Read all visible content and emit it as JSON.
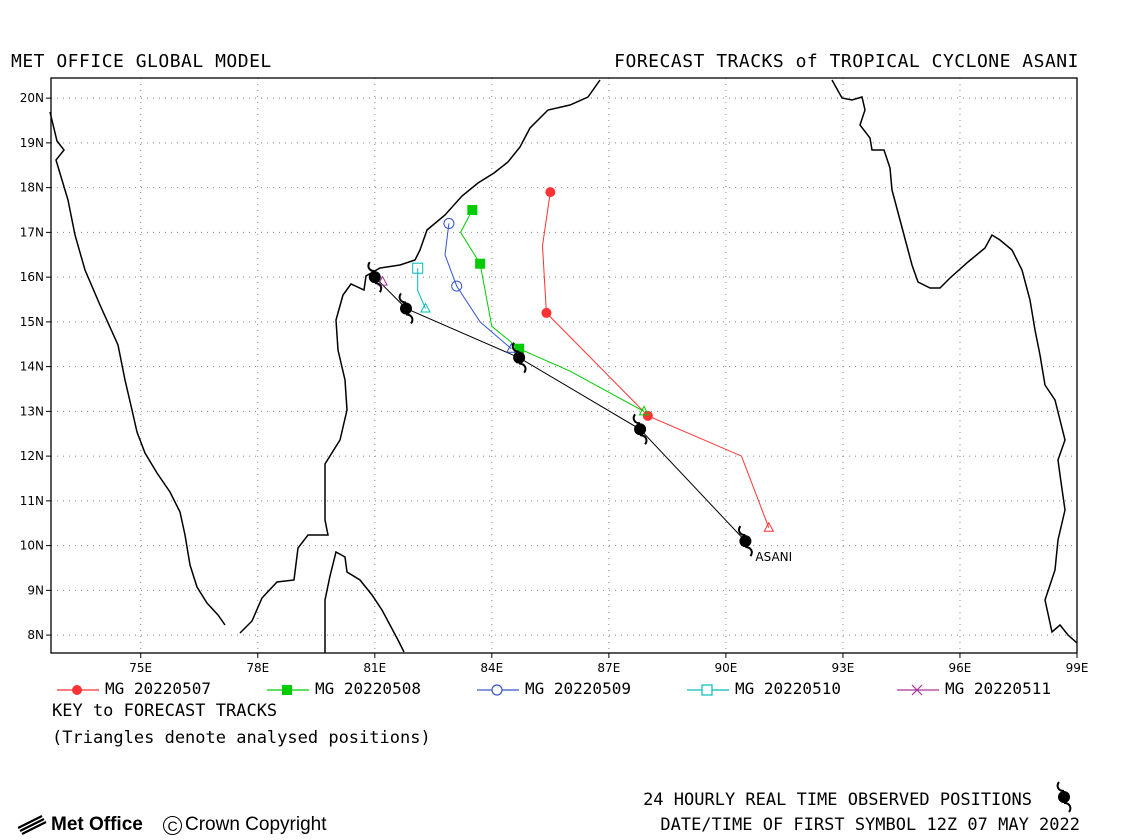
{
  "header": {
    "left_title": "MET OFFICE GLOBAL MODEL",
    "right_title": "FORECAST TRACKS of TROPICAL CYCLONE ASANI"
  },
  "map": {
    "lon_range": [
      72.7,
      99.0
    ],
    "lat_range": [
      7.6,
      20.45
    ],
    "lon_ticks": [
      "75E",
      "78E",
      "81E",
      "84E",
      "87E",
      "90E",
      "93E",
      "96E",
      "99E"
    ],
    "lat_ticks": [
      "20N",
      "19N",
      "18N",
      "17N",
      "16N",
      "15N",
      "14N",
      "13N",
      "12N",
      "11N",
      "10N",
      "9N",
      "8N"
    ],
    "grid": "dotted",
    "storm_label": "ASANI",
    "coast_color": "#000000"
  },
  "legend": {
    "items": [
      {
        "label": "MG 20220507",
        "color": "#ff3333",
        "marker": "filled-circle"
      },
      {
        "label": "MG 20220508",
        "color": "#00cc00",
        "marker": "filled-square"
      },
      {
        "label": "MG 20220509",
        "color": "#3355cc",
        "marker": "open-circle"
      },
      {
        "label": "MG 20220510",
        "color": "#00bbbb",
        "marker": "open-square"
      },
      {
        "label": "MG 20220511",
        "color": "#aa3399",
        "marker": "cross"
      }
    ],
    "key_title": "KEY to FORECAST TRACKS",
    "triangle_note": "(Triangles denote analysed positions)"
  },
  "footer": {
    "observed_label": "24 HOURLY REAL TIME OBSERVED POSITIONS",
    "first_symbol": "DATE/TIME OF FIRST SYMBOL 12Z 07 MAY 2022",
    "brand": "Met Office",
    "copyright": "Crown Copyright",
    "copyright_symbol": "C"
  },
  "tracks": {
    "observed": {
      "color": "#000000",
      "points": [
        [
          90.5,
          10.1
        ],
        [
          87.8,
          12.6
        ],
        [
          84.7,
          14.2
        ],
        [
          81.8,
          15.3
        ],
        [
          81.0,
          16.0
        ]
      ]
    },
    "forecasts": [
      {
        "name": "MG 20220507",
        "color": "#ff3333",
        "analysed": [
          91.1,
          10.4
        ],
        "points": [
          [
            91.1,
            10.4
          ],
          [
            90.4,
            12.0
          ],
          [
            88.0,
            12.9
          ],
          [
            85.4,
            15.2
          ],
          [
            85.3,
            16.7
          ],
          [
            85.5,
            17.9
          ]
        ],
        "markers": [
          [
            88.0,
            12.9
          ],
          [
            85.4,
            15.2
          ],
          [
            85.5,
            17.9
          ]
        ]
      },
      {
        "name": "MG 20220508",
        "color": "#00cc00",
        "analysed": [
          87.9,
          13.0
        ],
        "points": [
          [
            87.9,
            13.0
          ],
          [
            86.0,
            13.9
          ],
          [
            84.7,
            14.4
          ],
          [
            84.0,
            14.9
          ],
          [
            83.7,
            16.3
          ],
          [
            83.2,
            17.0
          ],
          [
            83.5,
            17.5
          ]
        ],
        "markers": [
          [
            84.7,
            14.4
          ],
          [
            83.7,
            16.3
          ],
          [
            83.5,
            17.5
          ]
        ]
      },
      {
        "name": "MG 20220509",
        "color": "#3355cc",
        "analysed": [
          84.5,
          14.4
        ],
        "points": [
          [
            84.5,
            14.4
          ],
          [
            83.7,
            15.0
          ],
          [
            83.1,
            15.8
          ],
          [
            82.8,
            16.5
          ],
          [
            82.9,
            17.2
          ]
        ],
        "markers": [
          [
            83.1,
            15.8
          ],
          [
            82.9,
            17.2
          ]
        ]
      },
      {
        "name": "MG 20220510",
        "color": "#00bbbb",
        "analysed": [
          82.3,
          15.3
        ],
        "points": [
          [
            82.3,
            15.3
          ],
          [
            82.1,
            15.7
          ],
          [
            82.1,
            16.2
          ]
        ],
        "markers": [
          [
            82.1,
            16.2
          ]
        ]
      },
      {
        "name": "MG 20220511",
        "color": "#aa3399",
        "analysed": [
          81.2,
          15.9
        ],
        "points": [
          [
            81.2,
            15.9
          ]
        ],
        "markers": []
      }
    ]
  }
}
